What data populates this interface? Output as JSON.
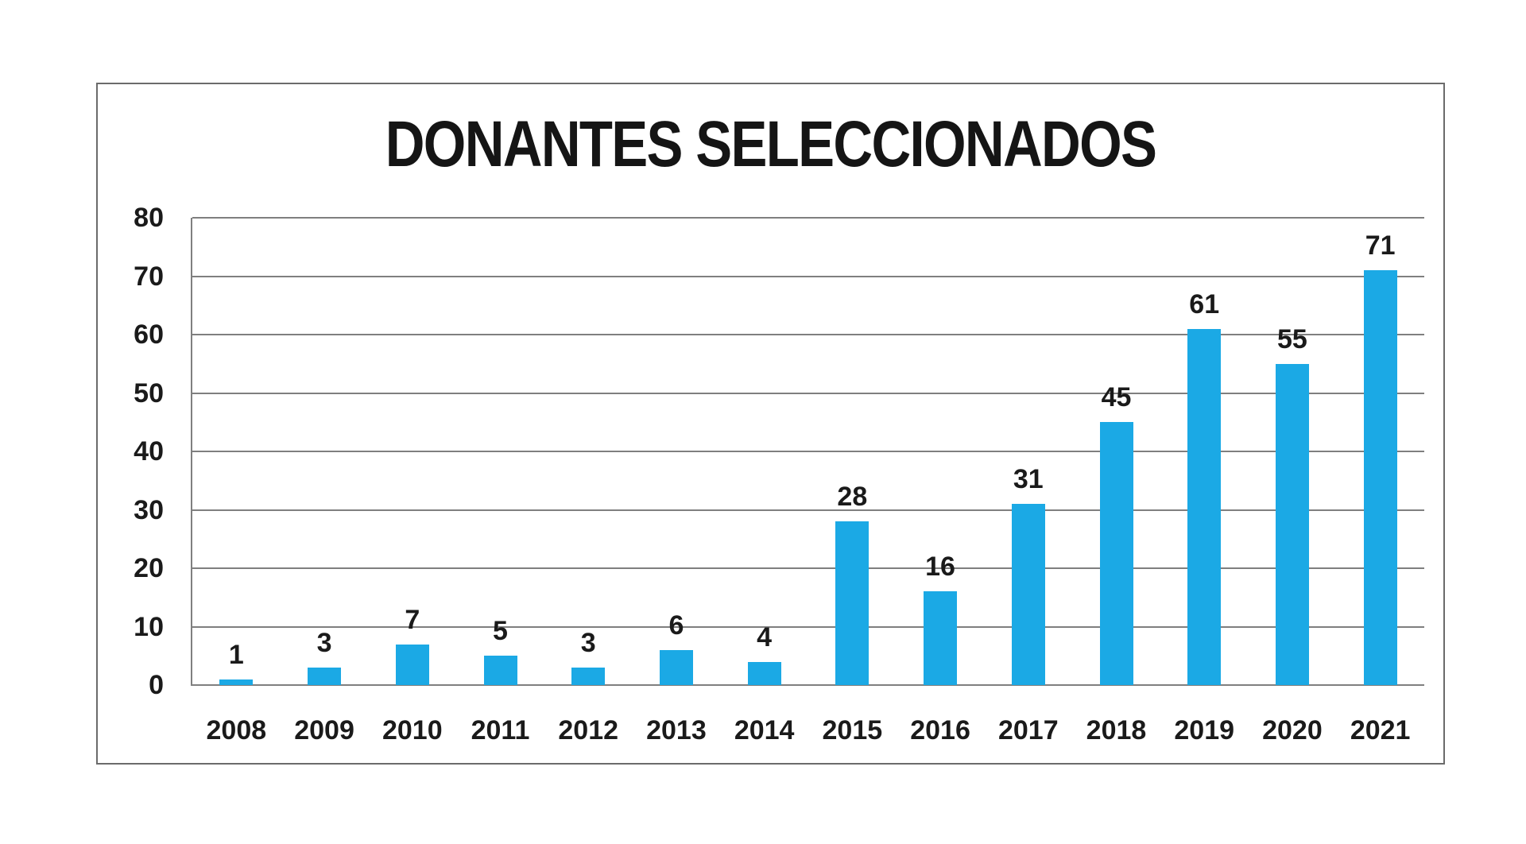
{
  "page": {
    "background": "#ffffff"
  },
  "chart": {
    "frame_border_color": "#6b6b6b",
    "plot_background": "#ffffff"
  },
  "chart_data": {
    "type": "bar",
    "title": "DONANTES SELECCIONADOS",
    "categories": [
      "2008",
      "2009",
      "2010",
      "2011",
      "2012",
      "2013",
      "2014",
      "2015",
      "2016",
      "2017",
      "2018",
      "2019",
      "2020",
      "2021"
    ],
    "values": [
      1,
      3,
      7,
      5,
      3,
      6,
      4,
      28,
      16,
      31,
      45,
      61,
      55,
      71
    ],
    "xlabel": "",
    "ylabel": "",
    "ylim": [
      0,
      80
    ],
    "yticks": [
      0,
      10,
      20,
      30,
      40,
      50,
      60,
      70,
      80
    ],
    "grid": "horizontal",
    "legend": "none",
    "data_labels": true,
    "bar_color": "#1BA9E5",
    "gridline_color": "#7f7f7f",
    "axis_color": "#7f7f7f",
    "text_color": "#1a1a1a"
  }
}
